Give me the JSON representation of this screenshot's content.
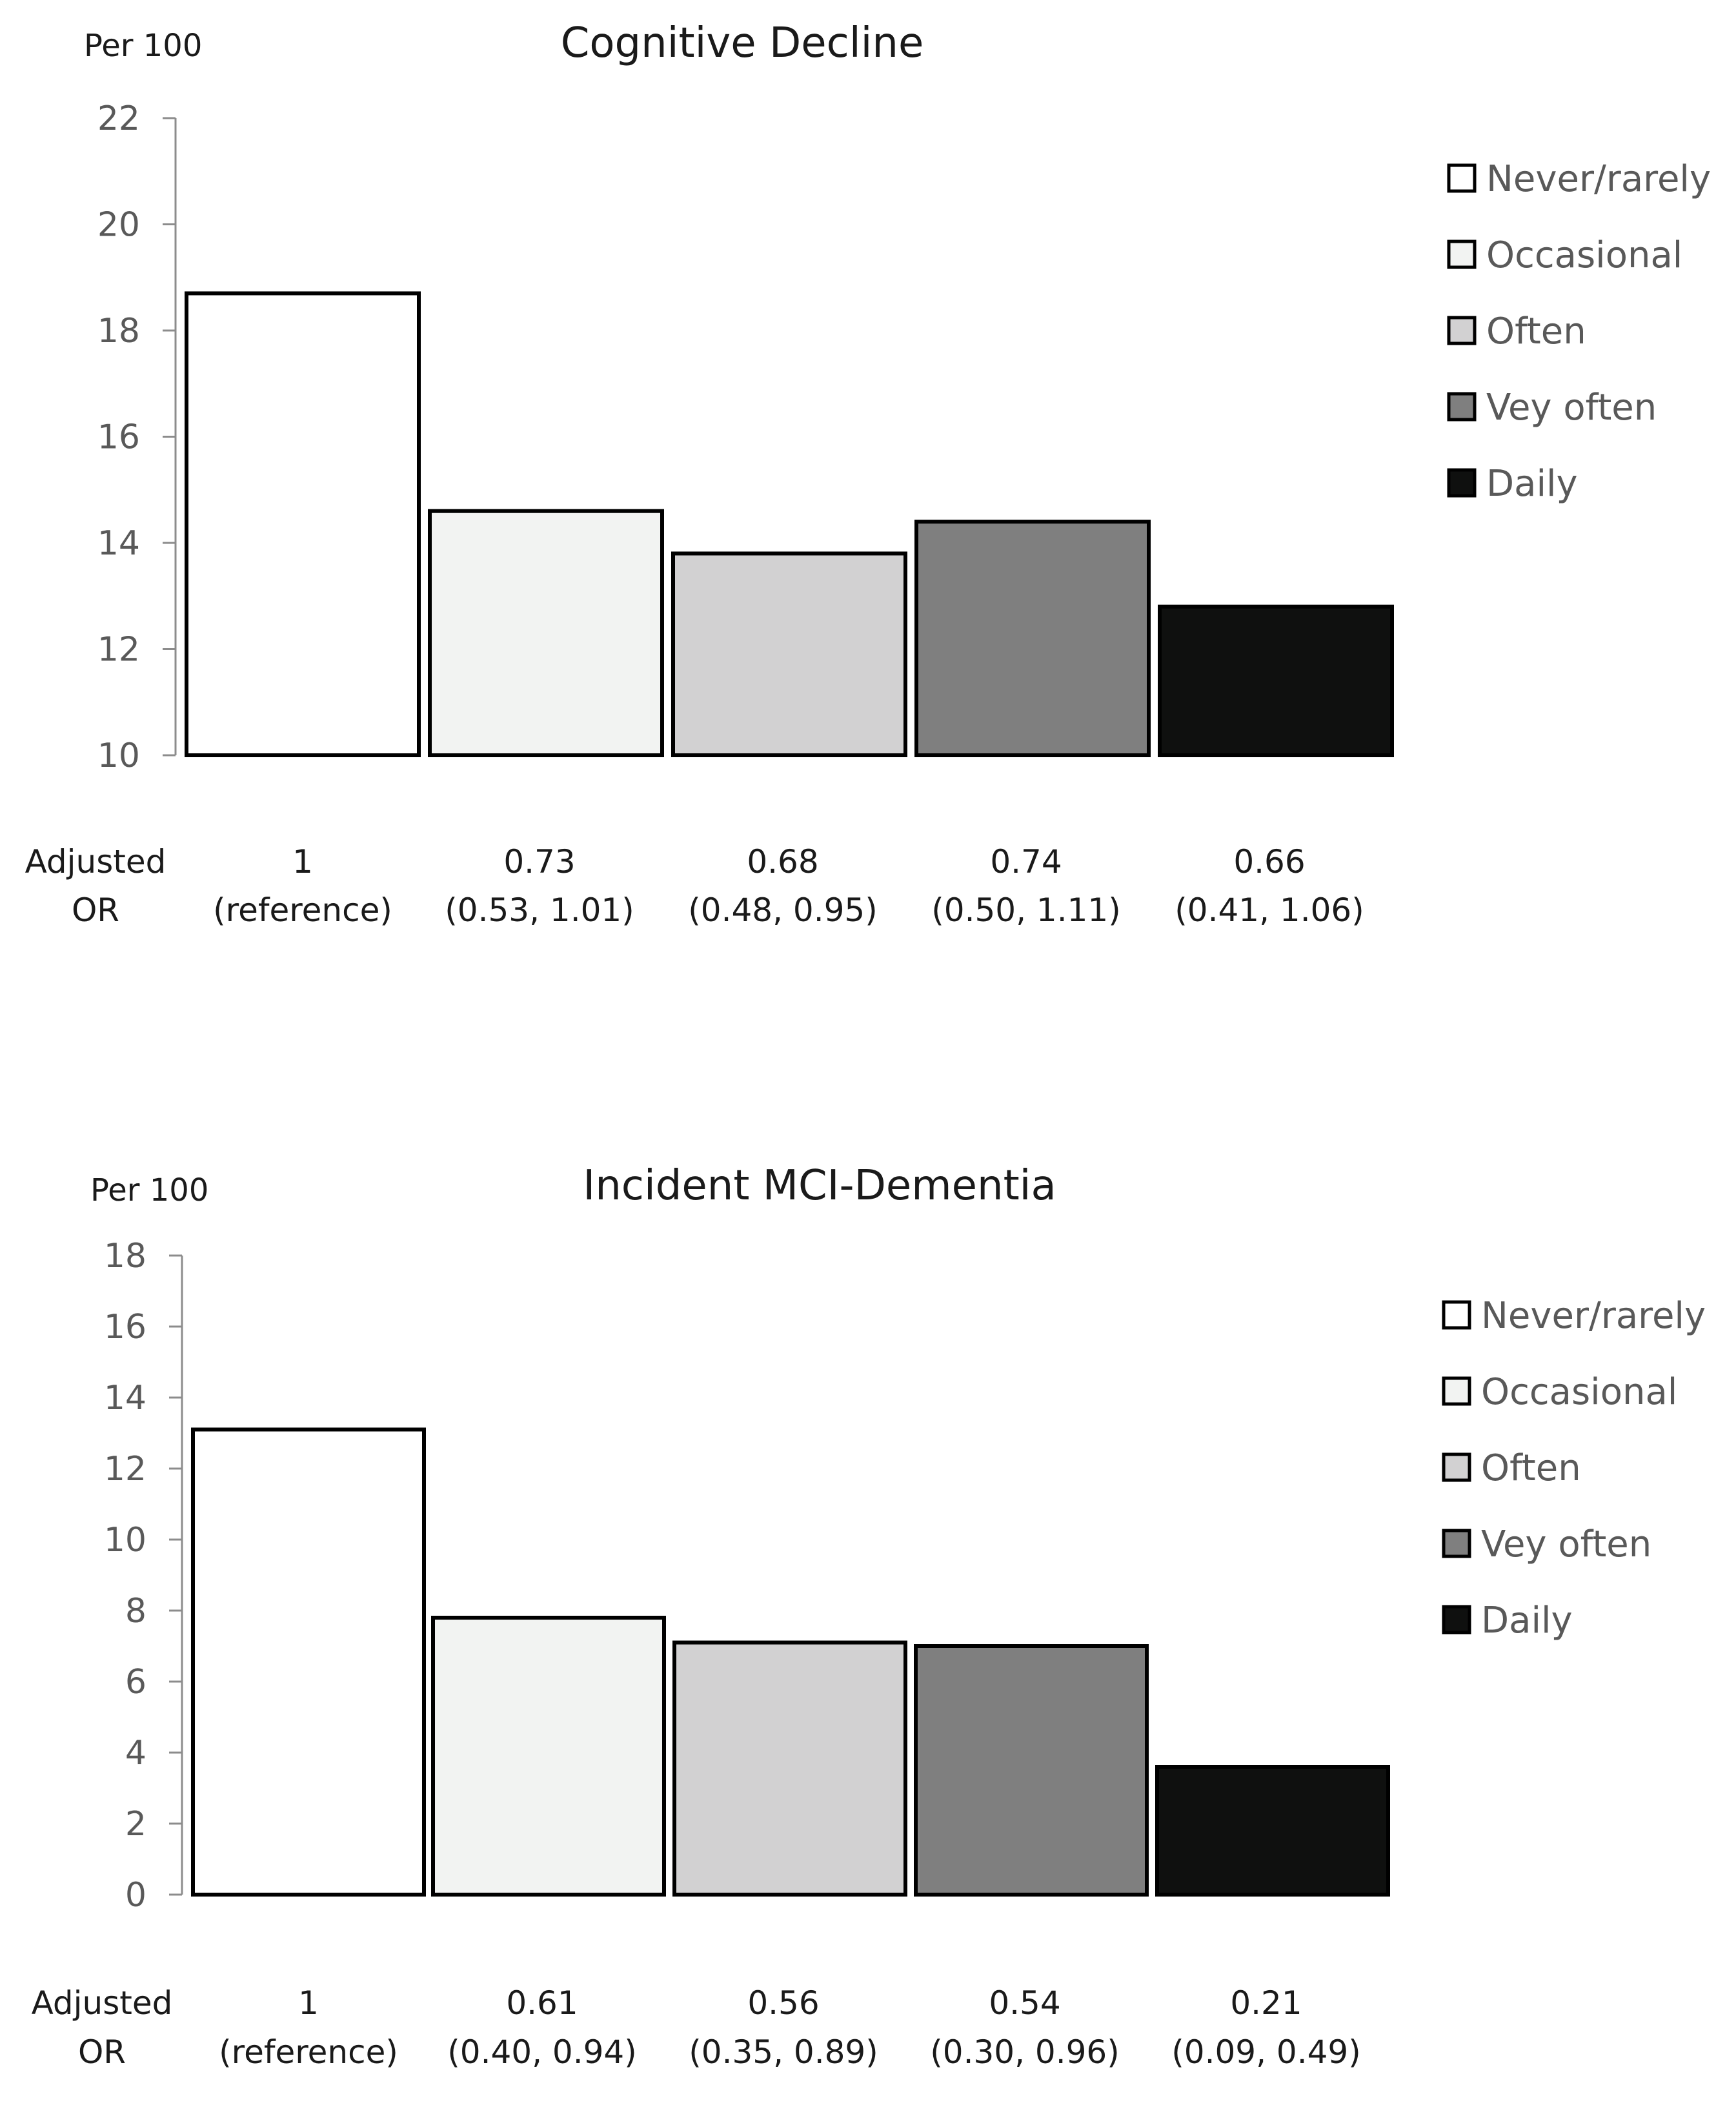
{
  "chart_data": [
    {
      "type": "bar",
      "title": "Cognitive Decline",
      "ylabel": "Per 100",
      "ylim": [
        10,
        22
      ],
      "yticks": [
        10,
        12,
        14,
        16,
        18,
        20,
        22
      ],
      "categories": [
        "Never/rarely",
        "Occasional",
        "Often",
        "Vey often",
        "Daily"
      ],
      "values": [
        18.7,
        14.6,
        13.8,
        14.4,
        12.8
      ],
      "colors": [
        "#ffffff",
        "#f2f3f2",
        "#d2d1d2",
        "#7f7f7f",
        "#0f100f"
      ],
      "legend": [
        "Never/rarely",
        "Occasional",
        "Often",
        "Vey often",
        "Daily"
      ],
      "or_label": [
        "Adjusted",
        "OR"
      ],
      "adjusted_or": [
        {
          "value": "1",
          "ci": "(reference)"
        },
        {
          "value": "0.73",
          "ci": "(0.53, 1.01)"
        },
        {
          "value": "0.68",
          "ci": "(0.48, 0.95)"
        },
        {
          "value": "0.74",
          "ci": "(0.50, 1.11)"
        },
        {
          "value": "0.66",
          "ci": "(0.41, 1.06)"
        }
      ]
    },
    {
      "type": "bar",
      "title": "Incident MCI-Dementia",
      "ylabel": "Per 100",
      "ylim": [
        0,
        18
      ],
      "yticks": [
        0,
        2,
        4,
        6,
        8,
        10,
        12,
        14,
        16,
        18
      ],
      "categories": [
        "Never/rarely",
        "Occasional",
        "Often",
        "Vey often",
        "Daily"
      ],
      "values": [
        13.1,
        7.8,
        7.1,
        7.0,
        3.6
      ],
      "colors": [
        "#ffffff",
        "#f2f3f2",
        "#d2d1d2",
        "#7f7f7f",
        "#0f100f"
      ],
      "legend": [
        "Never/rarely",
        "Occasional",
        "Often",
        "Vey often",
        "Daily"
      ],
      "or_label": [
        "Adjusted",
        "OR"
      ],
      "adjusted_or": [
        {
          "value": "1",
          "ci": "(reference)"
        },
        {
          "value": "0.61",
          "ci": "(0.40, 0.94)"
        },
        {
          "value": "0.56",
          "ci": "(0.35, 0.89)"
        },
        {
          "value": "0.54",
          "ci": "(0.30, 0.96)"
        },
        {
          "value": "0.21",
          "ci": "(0.09, 0.49)"
        }
      ]
    }
  ]
}
